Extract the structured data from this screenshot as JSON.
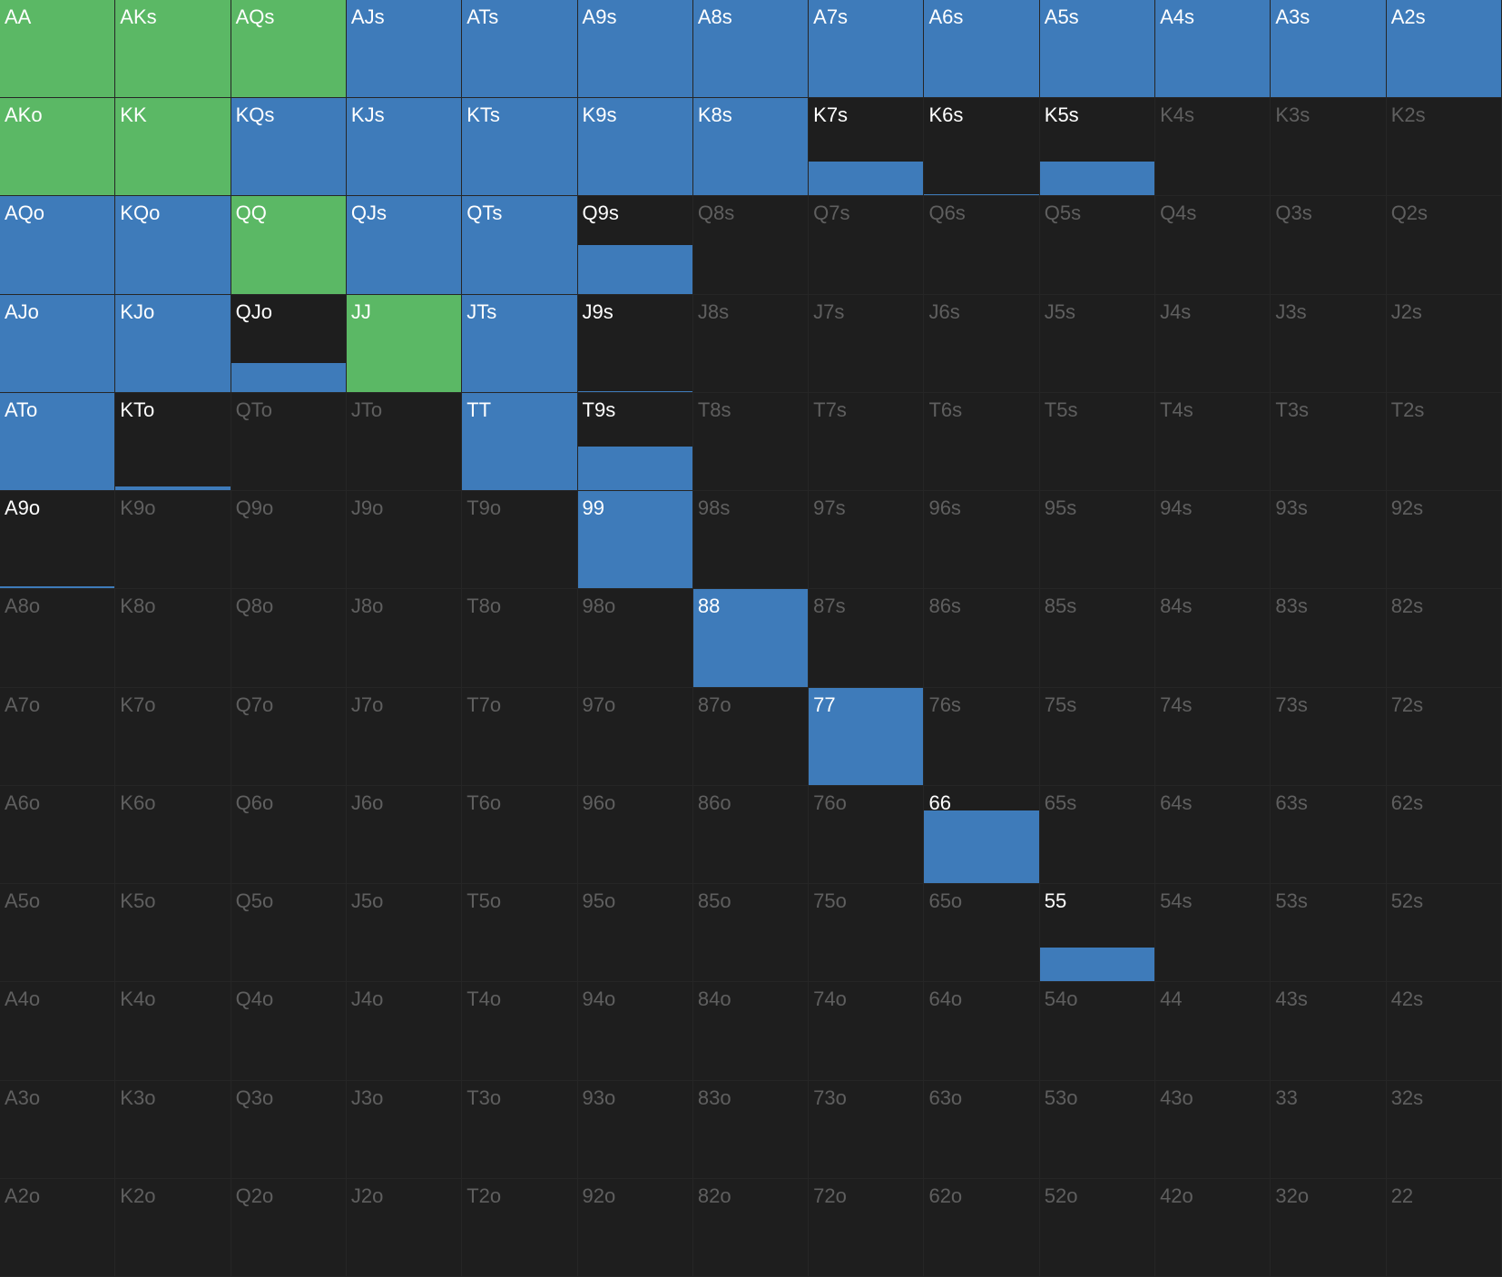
{
  "grid": {
    "hands": [
      [
        "AA",
        "AKs",
        "AQs",
        "AJs",
        "ATs",
        "A9s",
        "A8s",
        "A7s",
        "A6s",
        "A5s",
        "A4s",
        "A3s",
        "A2s"
      ],
      [
        "AKo",
        "KK",
        "KQs",
        "KJs",
        "KTs",
        "K9s",
        "K8s",
        "K7s",
        "K6s",
        "K5s",
        "K4s",
        "K3s",
        "K2s"
      ],
      [
        "AQo",
        "KQo",
        "QQ",
        "QJs",
        "QTs",
        "Q9s",
        "Q8s",
        "Q7s",
        "Q6s",
        "Q5s",
        "Q4s",
        "Q3s",
        "Q2s"
      ],
      [
        "AJo",
        "KJo",
        "QJo",
        "JJ",
        "JTs",
        "J9s",
        "J8s",
        "J7s",
        "J6s",
        "J5s",
        "J4s",
        "J3s",
        "J2s"
      ],
      [
        "ATo",
        "KTo",
        "QTo",
        "JTo",
        "TT",
        "T9s",
        "T8s",
        "T7s",
        "T6s",
        "T5s",
        "T4s",
        "T3s",
        "T2s"
      ],
      [
        "A9o",
        "K9o",
        "Q9o",
        "J9o",
        "T9o",
        "99",
        "98s",
        "97s",
        "96s",
        "95s",
        "94s",
        "93s",
        "92s"
      ],
      [
        "A8o",
        "K8o",
        "Q8o",
        "J8o",
        "T8o",
        "98o",
        "88",
        "87s",
        "86s",
        "85s",
        "84s",
        "83s",
        "82s"
      ],
      [
        "A7o",
        "K7o",
        "Q7o",
        "J7o",
        "T7o",
        "97o",
        "87o",
        "77",
        "76s",
        "75s",
        "74s",
        "73s",
        "72s"
      ],
      [
        "A6o",
        "K6o",
        "Q6o",
        "J6o",
        "T6o",
        "96o",
        "86o",
        "76o",
        "66",
        "65s",
        "64s",
        "63s",
        "62s"
      ],
      [
        "A5o",
        "K5o",
        "Q5o",
        "J5o",
        "T5o",
        "95o",
        "85o",
        "75o",
        "65o",
        "55",
        "54s",
        "53s",
        "52s"
      ],
      [
        "A4o",
        "K4o",
        "Q4o",
        "J4o",
        "T4o",
        "94o",
        "84o",
        "74o",
        "64o",
        "54o",
        "44",
        "43s",
        "42s"
      ],
      [
        "A3o",
        "K3o",
        "Q3o",
        "J3o",
        "T3o",
        "93o",
        "83o",
        "73o",
        "63o",
        "53o",
        "43o",
        "33",
        "32s"
      ],
      [
        "A2o",
        "K2o",
        "Q2o",
        "J2o",
        "T2o",
        "92o",
        "82o",
        "72o",
        "62o",
        "52o",
        "42o",
        "32o",
        "22"
      ]
    ],
    "frequency": [
      [
        100,
        100,
        100,
        100,
        100,
        100,
        100,
        100,
        100,
        100,
        100,
        100,
        100
      ],
      [
        100,
        100,
        100,
        100,
        100,
        100,
        100,
        35,
        1,
        35,
        0,
        0,
        0
      ],
      [
        100,
        100,
        100,
        100,
        100,
        50,
        0,
        0,
        0,
        0,
        0,
        0,
        0
      ],
      [
        100,
        100,
        30,
        100,
        100,
        1,
        0,
        0,
        0,
        0,
        0,
        0,
        0
      ],
      [
        100,
        4,
        0,
        0,
        100,
        45,
        0,
        0,
        0,
        0,
        0,
        0,
        0
      ],
      [
        2,
        0,
        0,
        0,
        0,
        100,
        0,
        0,
        0,
        0,
        0,
        0,
        0
      ],
      [
        0,
        0,
        0,
        0,
        0,
        0,
        100,
        0,
        0,
        0,
        0,
        0,
        0
      ],
      [
        0,
        0,
        0,
        0,
        0,
        0,
        0,
        100,
        0,
        0,
        0,
        0,
        0
      ],
      [
        0,
        0,
        0,
        0,
        0,
        0,
        0,
        0,
        75,
        0,
        0,
        0,
        0
      ],
      [
        0,
        0,
        0,
        0,
        0,
        0,
        0,
        0,
        0,
        35,
        0,
        0,
        0
      ],
      [
        0,
        0,
        0,
        0,
        0,
        0,
        0,
        0,
        0,
        0,
        0,
        0,
        0
      ],
      [
        0,
        0,
        0,
        0,
        0,
        0,
        0,
        0,
        0,
        0,
        0,
        0,
        0
      ],
      [
        0,
        0,
        0,
        0,
        0,
        0,
        0,
        0,
        0,
        0,
        0,
        0,
        0
      ]
    ],
    "color": [
      [
        "#5bb865",
        "#5bb865",
        "#5bb865",
        "#3e7bba",
        "#3e7bba",
        "#3e7bba",
        "#3e7bba",
        "#3e7bba",
        "#3e7bba",
        "#3e7bba",
        "#3e7bba",
        "#3e7bba",
        "#3e7bba"
      ],
      [
        "#5bb865",
        "#5bb865",
        "#3e7bba",
        "#3e7bba",
        "#3e7bba",
        "#3e7bba",
        "#3e7bba",
        "#3e7bba",
        "#3e7bba",
        "#3e7bba",
        null,
        null,
        null
      ],
      [
        "#3e7bba",
        "#3e7bba",
        "#5bb865",
        "#3e7bba",
        "#3e7bba",
        "#3e7bba",
        null,
        null,
        null,
        null,
        null,
        null,
        null
      ],
      [
        "#3e7bba",
        "#3e7bba",
        "#3e7bba",
        "#5bb865",
        "#3e7bba",
        "#3e7bba",
        null,
        null,
        null,
        null,
        null,
        null,
        null
      ],
      [
        "#3e7bba",
        "#3e7bba",
        null,
        null,
        "#3e7bba",
        "#3e7bba",
        null,
        null,
        null,
        null,
        null,
        null,
        null
      ],
      [
        "#3e7bba",
        null,
        null,
        null,
        null,
        "#3e7bba",
        null,
        null,
        null,
        null,
        null,
        null,
        null
      ],
      [
        null,
        null,
        null,
        null,
        null,
        null,
        "#3e7bba",
        null,
        null,
        null,
        null,
        null,
        null
      ],
      [
        null,
        null,
        null,
        null,
        null,
        null,
        null,
        "#3e7bba",
        null,
        null,
        null,
        null,
        null
      ],
      [
        null,
        null,
        null,
        null,
        null,
        null,
        null,
        null,
        "#3e7bba",
        null,
        null,
        null,
        null
      ],
      [
        null,
        null,
        null,
        null,
        null,
        null,
        null,
        null,
        null,
        "#3e7bba",
        null,
        null,
        null
      ],
      [
        null,
        null,
        null,
        null,
        null,
        null,
        null,
        null,
        null,
        null,
        null,
        null,
        null
      ],
      [
        null,
        null,
        null,
        null,
        null,
        null,
        null,
        null,
        null,
        null,
        null,
        null,
        null
      ],
      [
        null,
        null,
        null,
        null,
        null,
        null,
        null,
        null,
        null,
        null,
        null,
        null,
        null
      ]
    ]
  }
}
